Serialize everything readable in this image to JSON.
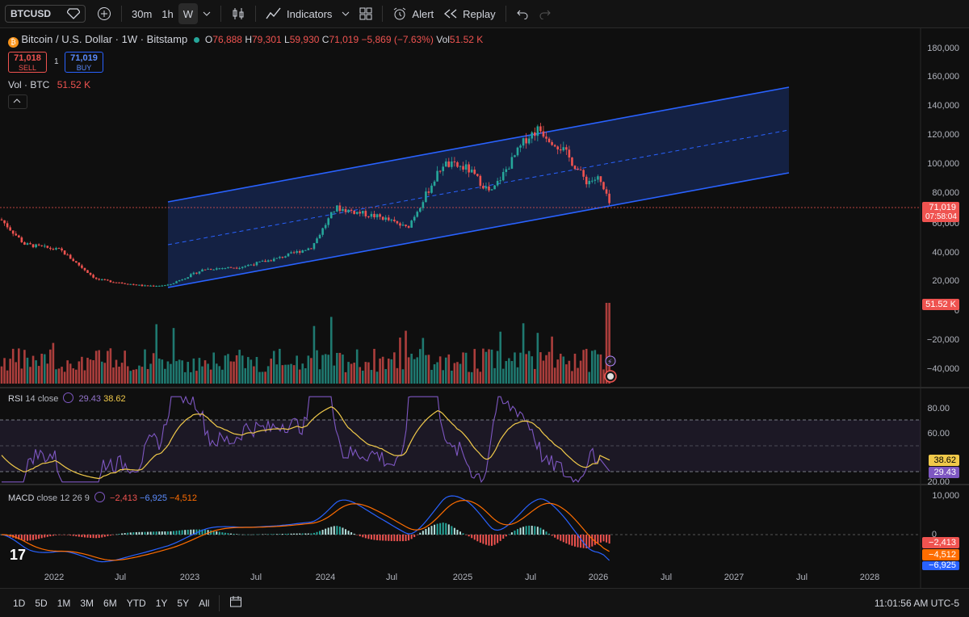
{
  "toolbar": {
    "symbol": "BTCUSD",
    "intervals": [
      "30m",
      "1h",
      "W"
    ],
    "active_interval": "W",
    "indicators_label": "Indicators",
    "alert_label": "Alert",
    "replay_label": "Replay"
  },
  "legend": {
    "title": "Bitcoin / U.S. Dollar · 1W · Bitstamp",
    "o_label": "O",
    "o": "76,888",
    "h_label": "H",
    "h": "79,301",
    "l_label": "L",
    "l": "59,930",
    "c_label": "C",
    "c": "71,019",
    "change": "−5,869 (−7.63%)",
    "vol_label": "Vol",
    "vol": "51.52 K",
    "sell_price": "71,018",
    "sell_label": "SELL",
    "spread": "1",
    "buy_price": "71,019",
    "buy_label": "BUY",
    "vol_row_label": "Vol · BTC",
    "vol_row_value": "51.52 K"
  },
  "price_axis": {
    "ticks": [
      "180,000",
      "160,000",
      "140,000",
      "120,000",
      "100,000",
      "80,000",
      "60,000",
      "40,000",
      "20,000",
      "0"
    ],
    "last_price": "71,019",
    "countdown": "07:58:04",
    "vol_tag": "51.52 K",
    "vol_ticks": [
      "−20,000",
      "−40,000"
    ]
  },
  "rsi": {
    "label": "RSI",
    "params": "14 close",
    "value": "29.43",
    "ma_value": "38.62",
    "ticks": [
      "80.00",
      "60.00",
      "20.00"
    ]
  },
  "macd": {
    "label": "MACD",
    "params": "close 12 26 9",
    "hist": "−2,413",
    "macd": "−6,925",
    "signal": "−4,512",
    "ticks": [
      "10,000",
      "0"
    ],
    "tag_hist": "−2,413",
    "tag_signal": "−4,512",
    "tag_macd": "−6,925"
  },
  "time_axis": [
    "2022",
    "Jul",
    "2023",
    "Jul",
    "2024",
    "Jul",
    "2025",
    "Jul",
    "2026",
    "Jul",
    "2027",
    "Jul",
    "2028"
  ],
  "bottombar": {
    "ranges": [
      "1D",
      "5D",
      "1M",
      "3M",
      "6M",
      "YTD",
      "1Y",
      "5Y",
      "All"
    ],
    "clock": "11:01:56 AM UTC-5"
  },
  "colors": {
    "up": "#26a69a",
    "down": "#ef5350",
    "channel": "#2962ff",
    "rsi": "#7e57c2",
    "rsi_ma": "#f0c94a",
    "macd": "#2962ff",
    "signal": "#ff6d00"
  },
  "chart_data": {
    "type": "line",
    "title": "Bitcoin / U.S. Dollar · 1W · Bitstamp",
    "x": [
      "2021-11",
      "2022-01",
      "2022-04",
      "2022-07",
      "2022-11",
      "2023-01",
      "2023-04",
      "2023-07",
      "2023-10",
      "2024-01",
      "2024-03",
      "2024-07",
      "2024-09",
      "2024-12",
      "2025-02",
      "2025-04",
      "2025-07",
      "2025-08",
      "2025-10",
      "2025-12",
      "2026-01",
      "2026-02"
    ],
    "series": [
      {
        "values": [
          62000,
          45000,
          41000,
          21000,
          16500,
          17000,
          28000,
          29500,
          35000,
          43000,
          70000,
          63000,
          56000,
          100000,
          97000,
          80000,
          118000,
          124000,
          110000,
          88000,
          90000,
          71019
        ]
      }
    ],
    "ylim": [
      0,
      180000
    ],
    "channel": {
      "lower": [
        [
          "2022-11",
          16500
        ],
        [
          "2026-06",
          95000
        ]
      ],
      "upper": [
        [
          "2022-11",
          75000
        ],
        [
          "2026-06",
          152000
        ]
      ]
    },
    "rsi_last": 29.43,
    "rsi_ma_last": 38.62,
    "macd_last": -6925,
    "signal_last": -4512,
    "hist_last": -2413
  }
}
